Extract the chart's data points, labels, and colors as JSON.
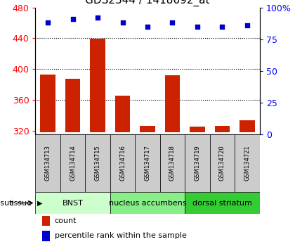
{
  "title": "GDS2344 / 1418692_at",
  "samples": [
    "GSM134713",
    "GSM134714",
    "GSM134715",
    "GSM134716",
    "GSM134717",
    "GSM134718",
    "GSM134719",
    "GSM134720",
    "GSM134721"
  ],
  "counts": [
    393,
    387,
    439,
    365,
    326,
    392,
    325,
    326,
    333
  ],
  "percentiles": [
    88,
    91,
    92,
    88,
    85,
    88,
    85,
    85,
    86
  ],
  "ylim_left": [
    315,
    480
  ],
  "yticks_left": [
    320,
    360,
    400,
    440,
    480
  ],
  "ylim_right": [
    0,
    100
  ],
  "yticks_right": [
    0,
    25,
    50,
    75,
    100
  ],
  "bar_color": "#cc2200",
  "dot_color": "#0000cc",
  "bar_bottom": 318,
  "gridlines": [
    360,
    400,
    440
  ],
  "groups": [
    {
      "label": "BNST",
      "start": 0,
      "end": 3,
      "color": "#ccffcc"
    },
    {
      "label": "nucleus accumbens",
      "start": 3,
      "end": 6,
      "color": "#88ee88"
    },
    {
      "label": "dorsal striatum",
      "start": 6,
      "end": 9,
      "color": "#33cc33"
    }
  ],
  "tissue_label": "tissue",
  "legend_items": [
    {
      "label": "count",
      "color": "#cc2200"
    },
    {
      "label": "percentile rank within the sample",
      "color": "#0000cc"
    }
  ],
  "sample_box_color": "#cccccc",
  "title_fontsize": 11,
  "tick_fontsize": 9,
  "sample_fontsize": 6,
  "group_fontsize": 8,
  "legend_fontsize": 8
}
